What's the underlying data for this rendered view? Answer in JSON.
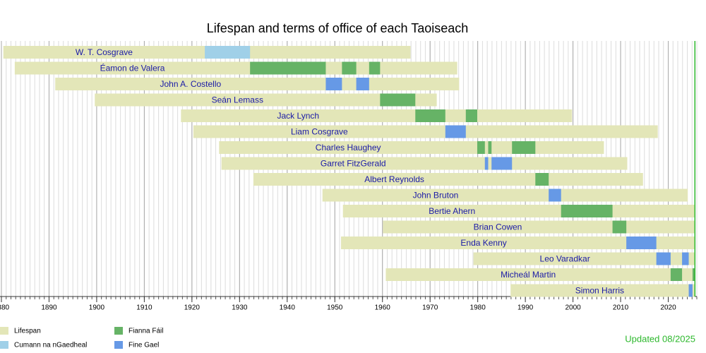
{
  "chart_data": {
    "type": "timeline",
    "title": "Lifespan and terms of office of each Taoiseach",
    "categories": [
      "W. T. Cosgrave",
      "Éamon de Valera",
      "John A. Costello",
      "Seán Lemass",
      "Jack Lynch",
      "Liam Cosgrave",
      "Charles Haughey",
      "Garret FitzGerald",
      "Albert Reynolds",
      "John Bruton",
      "Bertie Ahern",
      "Brian Cowen",
      "Enda Kenny",
      "Leo Varadkar",
      "Micheál Martin",
      "Simon Harris"
    ],
    "series": [
      {
        "name": "Lifespan",
        "color": "#e3e6b8",
        "values": [
          [
            [
              1880.4,
              1965.9
            ]
          ],
          [
            [
              1882.8,
              1975.7
            ]
          ],
          [
            [
              1891.3,
              1976.1
            ]
          ],
          [
            [
              1899.6,
              1971.4
            ]
          ],
          [
            [
              1917.7,
              1999.8
            ]
          ],
          [
            [
              1920.3,
              2017.8
            ]
          ],
          [
            [
              1925.7,
              2006.5
            ]
          ],
          [
            [
              1926.2,
              2011.4
            ]
          ],
          [
            [
              1932.9,
              2014.7
            ]
          ],
          [
            [
              1947.4,
              2024.1
            ]
          ],
          [
            [
              1951.7,
              2025.6
            ]
          ],
          [
            [
              1960.1,
              2025.6
            ]
          ],
          [
            [
              1951.3,
              2025.6
            ]
          ],
          [
            [
              1979.1,
              2025.6
            ]
          ],
          [
            [
              1960.7,
              2025.6
            ]
          ],
          [
            [
              1986.9,
              2025.6
            ]
          ]
        ]
      },
      {
        "name": "Cumann na nGaedheal",
        "color": "#a0d0e8",
        "values": [
          [
            [
              1922.7,
              1932.2
            ]
          ],
          [],
          [],
          [],
          [],
          [],
          [],
          [],
          [],
          [],
          [],
          [],
          [],
          [],
          [],
          []
        ]
      },
      {
        "name": "Fianna Fáil",
        "color": "#66b366",
        "values": [
          [],
          [
            [
              1932.2,
              1948.1
            ],
            [
              1951.5,
              1954.5
            ],
            [
              1957.2,
              1959.5
            ]
          ],
          [],
          [
            [
              1959.5,
              1966.9
            ]
          ],
          [
            [
              1966.9,
              1973.2
            ],
            [
              1977.5,
              1979.9
            ]
          ],
          [],
          [
            [
              1979.9,
              1981.5
            ],
            [
              1982.2,
              1982.9
            ],
            [
              1987.2,
              1992.1
            ]
          ],
          [],
          [
            [
              1992.1,
              1994.9
            ]
          ],
          [],
          [
            [
              1997.5,
              2008.3
            ]
          ],
          [
            [
              2008.3,
              2011.2
            ]
          ],
          [],
          [],
          [
            [
              2020.5,
              2022.9
            ],
            [
              2025.1,
              2025.6
            ]
          ],
          []
        ]
      },
      {
        "name": "Fine Gael",
        "color": "#6699e6",
        "values": [
          [],
          [],
          [
            [
              1948.1,
              1951.5
            ],
            [
              1954.5,
              1957.2
            ]
          ],
          [],
          [],
          [
            [
              1973.2,
              1977.5
            ]
          ],
          [],
          [
            [
              1981.5,
              1982.2
            ],
            [
              1982.9,
              1987.2
            ]
          ],
          [],
          [
            [
              1994.9,
              1997.5
            ]
          ],
          [],
          [],
          [
            [
              2011.2,
              2017.5
            ]
          ],
          [
            [
              2017.5,
              2020.5
            ],
            [
              2022.9,
              2024.3
            ]
          ],
          [],
          [
            [
              2024.3,
              2025.1
            ]
          ]
        ]
      }
    ],
    "xlim": [
      1880,
      2026
    ],
    "xticks": [
      1880,
      1890,
      1900,
      1910,
      1920,
      1930,
      1940,
      1950,
      1960,
      1970,
      1980,
      1990,
      2000,
      2010,
      2020
    ],
    "today_line": 2025.6,
    "today_color": "#2db82d",
    "note": "Updated 08/2025"
  }
}
